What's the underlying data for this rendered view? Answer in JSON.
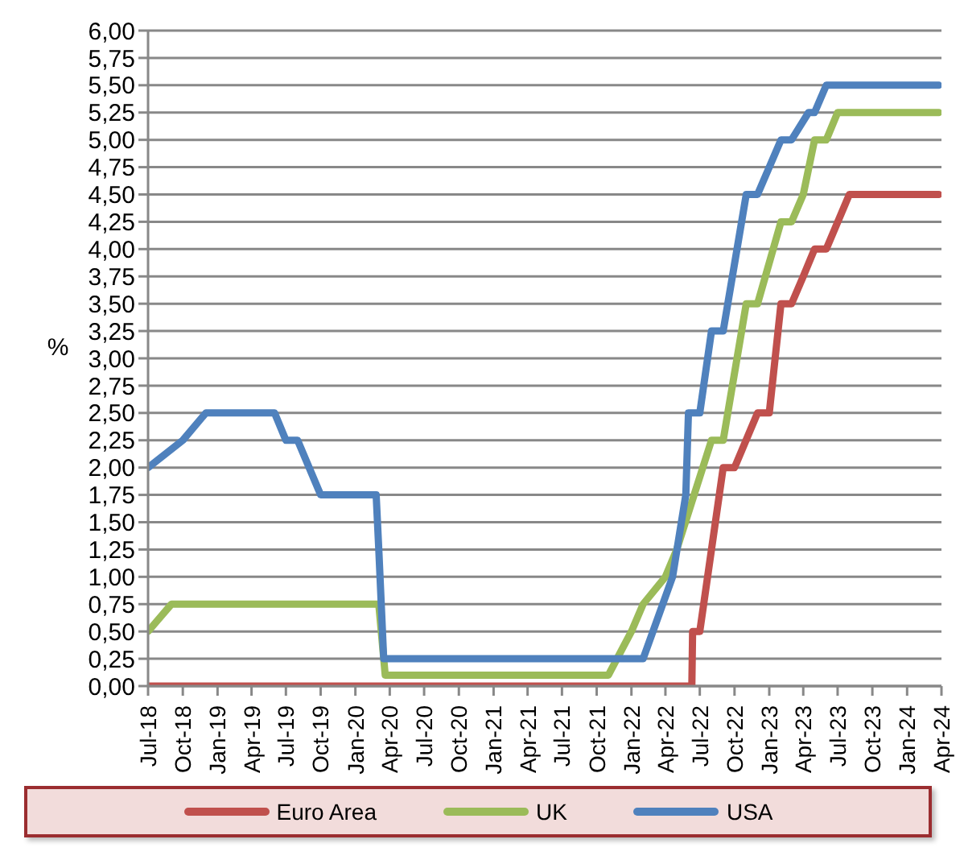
{
  "chart_data": {
    "type": "line",
    "ylabel": "%",
    "xlim": [
      "2018-07",
      "2024-04"
    ],
    "xticks": [
      {
        "value": "2018-07",
        "label": "Jul-18"
      },
      {
        "value": "2018-10",
        "label": "Oct-18"
      },
      {
        "value": "2019-01",
        "label": "Jan-19"
      },
      {
        "value": "2019-04",
        "label": "Apr-19"
      },
      {
        "value": "2019-07",
        "label": "Jul-19"
      },
      {
        "value": "2019-10",
        "label": "Oct-19"
      },
      {
        "value": "2020-01",
        "label": "Jan-20"
      },
      {
        "value": "2020-04",
        "label": "Apr-20"
      },
      {
        "value": "2020-07",
        "label": "Jul-20"
      },
      {
        "value": "2020-10",
        "label": "Oct-20"
      },
      {
        "value": "2021-01",
        "label": "Jan-21"
      },
      {
        "value": "2021-04",
        "label": "Apr-21"
      },
      {
        "value": "2021-07",
        "label": "Jul-21"
      },
      {
        "value": "2021-10",
        "label": "Oct-21"
      },
      {
        "value": "2022-01",
        "label": "Jan-22"
      },
      {
        "value": "2022-04",
        "label": "Apr-22"
      },
      {
        "value": "2022-07",
        "label": "Jul-22"
      },
      {
        "value": "2022-10",
        "label": "Oct-22"
      },
      {
        "value": "2023-01",
        "label": "Jan-23"
      },
      {
        "value": "2023-04",
        "label": "Apr-23"
      },
      {
        "value": "2023-07",
        "label": "Jul-23"
      },
      {
        "value": "2023-10",
        "label": "Oct-23"
      },
      {
        "value": "2024-01",
        "label": "Jan-24"
      },
      {
        "value": "2024-04",
        "label": "Apr-24"
      }
    ],
    "ylim": [
      0,
      6
    ],
    "yticks": [
      {
        "value": 0,
        "label": "0,00"
      },
      {
        "value": 0.25,
        "label": "0,25"
      },
      {
        "value": 0.5,
        "label": "0,50"
      },
      {
        "value": 0.75,
        "label": "0,75"
      },
      {
        "value": 1,
        "label": "1,00"
      },
      {
        "value": 1.25,
        "label": "1,25"
      },
      {
        "value": 1.5,
        "label": "1,50"
      },
      {
        "value": 1.75,
        "label": "1,75"
      },
      {
        "value": 2,
        "label": "2,00"
      },
      {
        "value": 2.25,
        "label": "2,25"
      },
      {
        "value": 2.5,
        "label": "2,50"
      },
      {
        "value": 2.75,
        "label": "2,75"
      },
      {
        "value": 3,
        "label": "3,00"
      },
      {
        "value": 3.25,
        "label": "3,25"
      },
      {
        "value": 3.5,
        "label": "3,50"
      },
      {
        "value": 3.75,
        "label": "3,75"
      },
      {
        "value": 4,
        "label": "4,00"
      },
      {
        "value": 4.25,
        "label": "4,25"
      },
      {
        "value": 4.5,
        "label": "4,50"
      },
      {
        "value": 4.75,
        "label": "4,75"
      },
      {
        "value": 5,
        "label": "5,00"
      },
      {
        "value": 5.25,
        "label": "5,25"
      },
      {
        "value": 5.5,
        "label": "5,50"
      },
      {
        "value": 5.75,
        "label": "5,75"
      },
      {
        "value": 6,
        "label": "6,00"
      }
    ],
    "grid": "y",
    "legend": "bottom",
    "marker": "none",
    "line_style": "solid",
    "series": [
      {
        "name": "Euro Area",
        "color": "#c0504d",
        "x": [
          "2018-07",
          "2022-06-10",
          "2022-06-12",
          "2022-07",
          "2022-09",
          "2022-10",
          "2022-12",
          "2023-01",
          "2023-02",
          "2023-03",
          "2023-04",
          "2023-05",
          "2023-06",
          "2023-08",
          "2024-03-25"
        ],
        "values": [
          0,
          0,
          0.5,
          0.5,
          2,
          2,
          2.5,
          2.5,
          3.5,
          3.5,
          3.75,
          4,
          4,
          4.5,
          4.5
        ]
      },
      {
        "name": "UK",
        "color": "#9bbb59",
        "x": [
          "2018-07",
          "2018-09",
          "2020-03-03",
          "2020-03-20",
          "2021-11",
          "2022-01",
          "2022-02",
          "2022-04",
          "2022-05",
          "2022-08",
          "2022-09",
          "2022-11",
          "2022-12",
          "2023-02",
          "2023-03",
          "2023-04",
          "2023-05",
          "2023-06",
          "2023-07",
          "2024-03-25"
        ],
        "values": [
          0.5,
          0.75,
          0.75,
          0.1,
          0.1,
          0.5,
          0.75,
          1,
          1.25,
          2.25,
          2.25,
          3.5,
          3.5,
          4.25,
          4.25,
          4.5,
          5,
          5,
          5.25,
          5.25
        ]
      },
      {
        "name": "USA",
        "color": "#4f81bd",
        "x": [
          "2018-07",
          "2018-10",
          "2018-12",
          "2019-06",
          "2019-07",
          "2019-08",
          "2019-10",
          "2020-02-25",
          "2020-03-03",
          "2020-03-16",
          "2022-02",
          "2022-04-20",
          "2022-05-25",
          "2022-06",
          "2022-07",
          "2022-08",
          "2022-09",
          "2022-11",
          "2022-12",
          "2023-02",
          "2023-03",
          "2023-04-15",
          "2023-05",
          "2023-06",
          "2024-03-25"
        ],
        "values": [
          2,
          2.25,
          2.5,
          2.5,
          2.25,
          2.25,
          1.75,
          1.75,
          1.25,
          0.25,
          0.25,
          1,
          1.75,
          2.5,
          2.5,
          3.25,
          3.25,
          4.5,
          4.5,
          5,
          5,
          5.25,
          5.25,
          5.5,
          5.5
        ]
      }
    ]
  }
}
